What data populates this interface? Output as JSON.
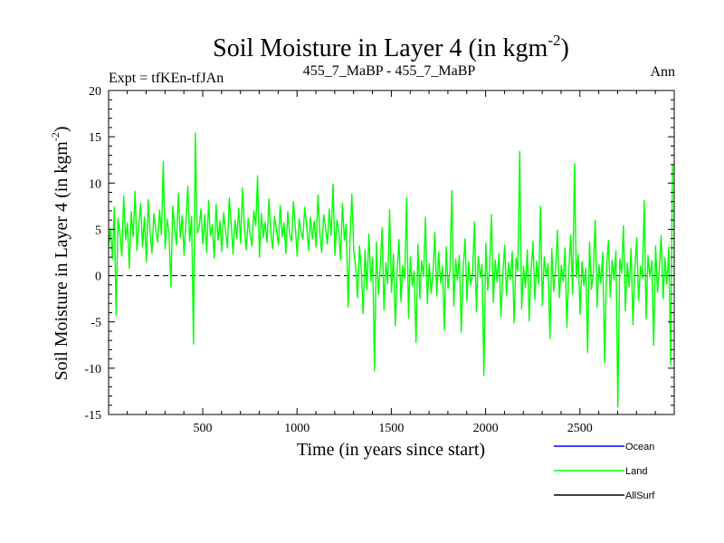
{
  "chart_data": {
    "type": "line",
    "title": "Soil Moisture in Layer 4 (in kgm",
    "title_sup": "-2",
    "title_close": ")",
    "subtitle_left": "Expt = tfKEn-tfJAn",
    "subtitle_center": "455_7_MaBP - 455_7_MaBP",
    "subtitle_right": "Ann",
    "xlabel": "Time (in years since start)",
    "ylabel": "Soil Moisture in Layer 4 (in kgm",
    "ylabel_sup": "-2",
    "ylabel_close": ")",
    "xlim": [
      1,
      3000
    ],
    "ylim": [
      -15,
      20
    ],
    "x_ticks": [
      500,
      1000,
      1500,
      2000,
      2500
    ],
    "y_ticks": [
      -15,
      -10,
      -5,
      0,
      5,
      10,
      15,
      20
    ],
    "zero_line": true,
    "grid": false,
    "legend_position": "bottom-right",
    "series": [
      {
        "name": "Ocean",
        "color": "#0000ff",
        "values": []
      },
      {
        "name": "Land",
        "color": "#00ff00",
        "x_start": 1,
        "x_step": 10,
        "values": [
          3.2,
          5.1,
          1.8,
          7.4,
          -4.3,
          6.2,
          4.5,
          2.1,
          8.6,
          3.9,
          5.7,
          0.8,
          6.9,
          4.2,
          9.1,
          2.7,
          5.4,
          7.8,
          3.1,
          6.3,
          1.5,
          8.2,
          4.8,
          2.4,
          6.7,
          5.0,
          3.6,
          7.1,
          4.4,
          12.3,
          2.9,
          6.1,
          4.7,
          -1.2,
          7.5,
          5.3,
          3.3,
          8.9,
          4.1,
          6.5,
          2.2,
          5.8,
          9.7,
          3.7,
          6.4,
          -7.4,
          15.4,
          4.6,
          5.2,
          7.2,
          3.4,
          6.6,
          2.5,
          8.1,
          4.3,
          5.5,
          1.9,
          7.7,
          3.8,
          5.9,
          2.6,
          6.8,
          4.9,
          3.0,
          8.4,
          5.6,
          2.3,
          6.0,
          4.0,
          7.3,
          3.5,
          9.5,
          5.1,
          2.8,
          6.2,
          4.5,
          3.2,
          7.0,
          5.4,
          10.8,
          2.0,
          6.7,
          4.1,
          5.8,
          3.6,
          8.3,
          4.7,
          2.9,
          6.4,
          5.0,
          3.3,
          7.6,
          4.2,
          5.7,
          2.4,
          6.9,
          4.4,
          3.7,
          8.0,
          5.3,
          2.1,
          6.1,
          4.8,
          3.9,
          7.4,
          5.5,
          2.7,
          6.3,
          4.0,
          5.9,
          3.1,
          8.7,
          4.6,
          2.5,
          6.6,
          5.2,
          3.4,
          7.2,
          4.3,
          9.9,
          2.2,
          6.0,
          4.9,
          1.7,
          7.8,
          3.8,
          5.6,
          -3.4,
          4.1,
          8.8,
          2.6,
          1.0,
          -2.4,
          3.2,
          0.4,
          -4.1,
          2.8,
          -1.5,
          4.5,
          -0.6,
          1.9,
          -10.3,
          3.6,
          -2.0,
          0.9,
          5.2,
          -3.7,
          1.4,
          -0.9,
          7.1,
          -1.8,
          2.3,
          -5.4,
          0.7,
          3.9,
          -2.8,
          1.1,
          -0.3,
          8.4,
          -4.6,
          2.0,
          -1.1,
          0.5,
          -7.2,
          3.4,
          -2.5,
          1.6,
          -0.1,
          6.3,
          -3.0,
          1.3,
          -1.9,
          0.2,
          4.7,
          -2.2,
          2.5,
          -0.8,
          1.0,
          -5.9,
          3.1,
          -1.4,
          0.6,
          9.2,
          -3.3,
          1.8,
          -0.5,
          2.2,
          -6.1,
          0.8,
          4.0,
          -2.7,
          1.5,
          -1.0,
          0.3,
          5.8,
          -3.9,
          2.1,
          -0.2,
          1.2,
          -10.8,
          3.5,
          -1.6,
          0.9,
          6.6,
          -2.9,
          1.7,
          -0.7,
          2.4,
          -4.4,
          0.1,
          3.3,
          -2.1,
          1.4,
          -0.4,
          2.6,
          -5.1,
          1.9,
          0.5,
          13.4,
          -3.6,
          1.0,
          -1.3,
          2.8,
          -4.9,
          0.4,
          3.7,
          -2.6,
          1.6,
          -0.9,
          7.5,
          -3.2,
          2.0,
          0.0,
          1.3,
          -6.8,
          2.9,
          -1.7,
          0.7,
          4.9,
          -2.4,
          1.1,
          -0.6,
          3.0,
          -5.6,
          0.6,
          4.4,
          -2.0,
          12.1,
          -0.2,
          2.3,
          -4.2,
          1.5,
          -1.1,
          0.8,
          -8.3,
          3.6,
          -1.5,
          0.2,
          6.0,
          -3.4,
          1.2,
          -0.8,
          2.5,
          -9.4,
          0.9,
          3.8,
          -2.3,
          1.7,
          -0.5,
          2.7,
          -14.2,
          1.8,
          0.3,
          5.4,
          -3.8,
          1.4,
          -1.2,
          2.9,
          -5.3,
          0.5,
          4.1,
          -2.7,
          1.0,
          -0.3,
          8.1,
          -4.7,
          2.2,
          -0.1,
          1.6,
          -7.5,
          3.2,
          -1.8,
          0.6,
          4.3,
          -2.5,
          1.9,
          -0.9,
          3.1,
          -9.6,
          12.0
        ]
      },
      {
        "name": "AllSurf",
        "color": "#000000",
        "values": []
      }
    ]
  }
}
